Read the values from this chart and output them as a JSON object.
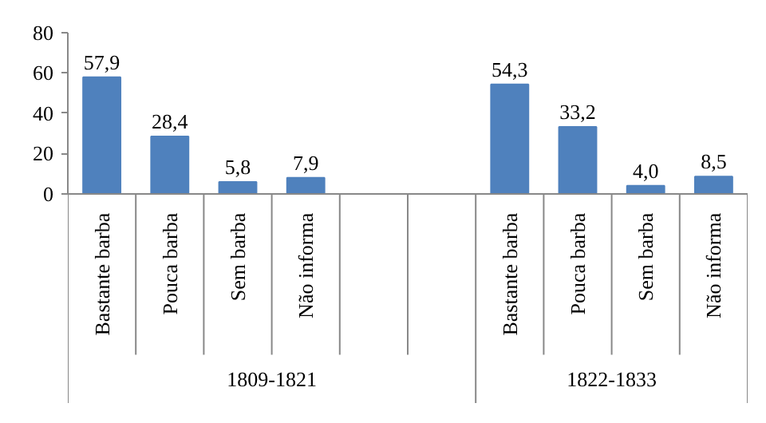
{
  "chart_data": {
    "type": "bar",
    "categories": [
      "Bastante barba",
      "Pouca barba",
      "Sem barba",
      "Não informa",
      null,
      null,
      "Bastante barba",
      "Pouca barba",
      "Sem barba",
      "Não informa"
    ],
    "values": [
      57.9,
      28.4,
      5.8,
      7.9,
      null,
      null,
      54.3,
      33.2,
      4.0,
      8.5
    ],
    "value_labels": [
      "57,9",
      "28,4",
      "5,8",
      "7,9",
      null,
      null,
      "54,3",
      "33,2",
      "4,0",
      "8,5"
    ],
    "color": "#4f81bd",
    "ylim": [
      0,
      80
    ],
    "yticks": [
      0,
      20,
      40,
      60,
      80
    ],
    "annotations": [
      "1809-1821",
      "1822-1833"
    ],
    "grid": false
  }
}
